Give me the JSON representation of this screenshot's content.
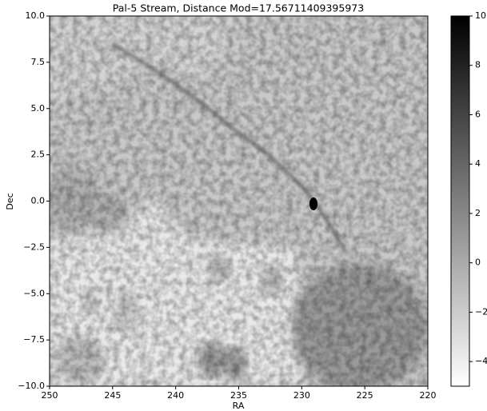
{
  "chart_data": {
    "type": "image",
    "title": "Pal-5 Stream, Distance Mod=17.56711409395973",
    "x_label": "RA",
    "y_label": "Dec",
    "xlim": [
      250,
      220
    ],
    "xticks": [
      250,
      245,
      240,
      235,
      230,
      225,
      220
    ],
    "ylim": [
      -10,
      10
    ],
    "yticks": [
      {
        "value": -10,
        "label": "−10.0"
      },
      {
        "value": -7.5,
        "label": "−7.5"
      },
      {
        "value": -5,
        "label": "−5.0"
      },
      {
        "value": -2.5,
        "label": "−2.5"
      },
      {
        "value": 0,
        "label": "0.0"
      },
      {
        "value": 2.5,
        "label": "2.5"
      },
      {
        "value": 5,
        "label": "5.0"
      },
      {
        "value": 7.5,
        "label": "7.5"
      },
      {
        "value": 10,
        "label": "10.0"
      }
    ],
    "colormap": [
      "#ffffff",
      "#000000"
    ],
    "clim": [
      -5,
      10
    ],
    "cticks": [
      {
        "value": -4,
        "label": "−4"
      },
      {
        "value": -2,
        "label": "−2"
      },
      0,
      2,
      4,
      6,
      8,
      10
    ]
  }
}
